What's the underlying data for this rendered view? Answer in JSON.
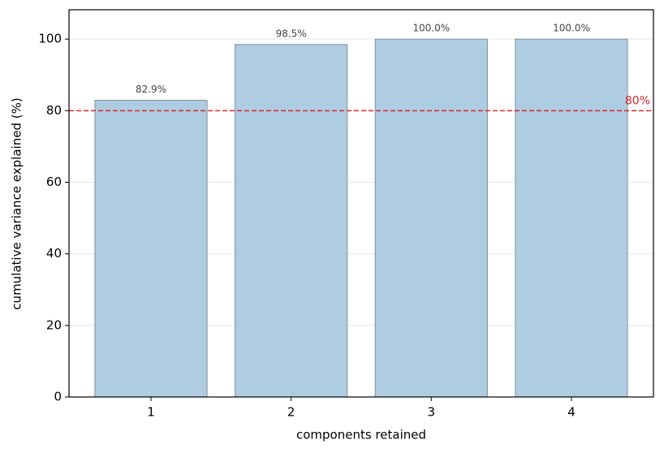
{
  "chart_data": {
    "type": "bar",
    "x": [
      1,
      2,
      3,
      4
    ],
    "values": [
      82.9,
      98.5,
      100.0,
      100.0
    ],
    "value_labels": [
      "82.9%",
      "98.5%",
      "100.0%",
      "100.0%"
    ],
    "color": "#aecde3",
    "edgecolor": "#7f8f9c",
    "xlim": [
      0.415,
      4.585
    ],
    "xticks": [
      1,
      2,
      3,
      4
    ],
    "ylim": [
      0,
      108.2
    ],
    "yticks": [
      0,
      20,
      40,
      60,
      80,
      100
    ],
    "grid": true,
    "xlabel": "components retained",
    "ylabel": "cumulative variance explained (%)",
    "threshold": {
      "value": 80,
      "label": "80%",
      "color": "#d62728"
    }
  }
}
